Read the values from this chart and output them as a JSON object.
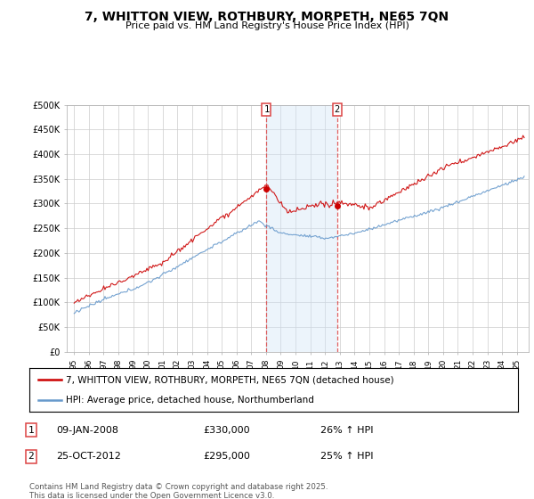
{
  "title": "7, WHITTON VIEW, ROTHBURY, MORPETH, NE65 7QN",
  "subtitle": "Price paid vs. HM Land Registry's House Price Index (HPI)",
  "ylim": [
    0,
    500000
  ],
  "yticks": [
    0,
    50000,
    100000,
    150000,
    200000,
    250000,
    300000,
    350000,
    400000,
    450000,
    500000
  ],
  "ytick_labels": [
    "£0",
    "£50K",
    "£100K",
    "£150K",
    "£200K",
    "£250K",
    "£300K",
    "£350K",
    "£400K",
    "£450K",
    "£500K"
  ],
  "red_line_label": "7, WHITTON VIEW, ROTHBURY, MORPETH, NE65 7QN (detached house)",
  "blue_line_label": "HPI: Average price, detached house, Northumberland",
  "annotation1_date": "09-JAN-2008",
  "annotation1_price": "£330,000",
  "annotation1_hpi": "26% ↑ HPI",
  "annotation2_date": "25-OCT-2012",
  "annotation2_price": "£295,000",
  "annotation2_hpi": "25% ↑ HPI",
  "point1_year": 2008.03,
  "point1_value": 330000,
  "point2_year": 2012.82,
  "point2_value": 295000,
  "shade_color": "#d0e4f7",
  "vline_color": "#dd4444",
  "red_color": "#cc0000",
  "blue_color": "#6699cc",
  "footer": "Contains HM Land Registry data © Crown copyright and database right 2025.\nThis data is licensed under the Open Government Licence v3.0.",
  "background_color": "#ffffff",
  "grid_color": "#cccccc"
}
